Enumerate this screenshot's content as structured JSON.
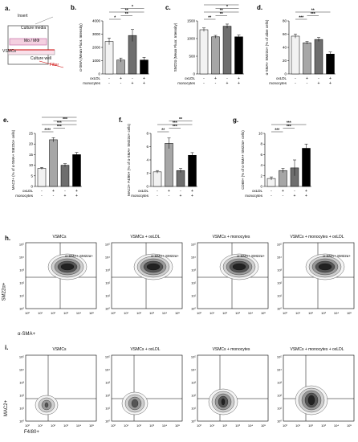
{
  "panel_a": {
    "label": "a.",
    "insert_label": "Insert",
    "culture_media": "Culture media",
    "mo_label": "Mo / MΦ",
    "vsmc_label": "VSMCs",
    "culture_well": "Culture well",
    "filter": "Filter"
  },
  "row_labels": [
    "oxLDL",
    "monocytes"
  ],
  "chart_data": [
    {
      "id": "b",
      "type": "bar",
      "panel": "b.",
      "ylabel": "α-SMA (Mean Fluor. Intensity)",
      "ylim": [
        0,
        4000
      ],
      "yticks": [
        "0",
        "1000",
        "2000",
        "3000",
        "4000"
      ],
      "values": [
        2450,
        1050,
        2900,
        1050
      ],
      "errors": [
        250,
        150,
        450,
        200
      ],
      "oxldl": [
        "-",
        "+",
        "-",
        "+"
      ],
      "monocytes": [
        "-",
        "-",
        "+",
        "+"
      ],
      "sig": [
        "*",
        "**",
        "**",
        "*"
      ]
    },
    {
      "id": "c",
      "type": "bar",
      "panel": "c.",
      "ylabel": "SM22α (Mean Fluor. Intensity)",
      "ylim": [
        0,
        1500
      ],
      "yticks": [
        "0",
        "500",
        "1000",
        "1500"
      ],
      "values": [
        1250,
        1050,
        1350,
        1050
      ],
      "errors": [
        50,
        40,
        60,
        50
      ],
      "oxldl": [
        "-",
        "+",
        "-",
        "+"
      ],
      "monocytes": [
        "-",
        "-",
        "+",
        "+"
      ],
      "sig": [
        "**",
        "**",
        "**",
        "*",
        "**"
      ]
    },
    {
      "id": "d",
      "type": "bar",
      "panel": "d.",
      "ylabel": "α-SMA+ SM22α+ (% of alive cells)",
      "ylim": [
        0,
        80
      ],
      "yticks": [
        "0",
        "20",
        "40",
        "60",
        "80"
      ],
      "values": [
        57,
        47,
        52,
        30
      ],
      "errors": [
        3,
        2,
        3,
        3
      ],
      "oxldl": [
        "-",
        "+",
        "-",
        "+"
      ],
      "monocytes": [
        "-",
        "-",
        "+",
        "+"
      ],
      "sig": [
        "***",
        "***",
        "**"
      ]
    },
    {
      "id": "e",
      "type": "bar",
      "panel": "e.",
      "ylabel": "MAC2+ (% of α-SMA+ SM22α+ cells)",
      "ylim": [
        0,
        25
      ],
      "yticks": [
        "0",
        "5",
        "10",
        "15",
        "20",
        "25"
      ],
      "values": [
        8.5,
        22,
        10,
        15
      ],
      "errors": [
        0.5,
        1,
        0.7,
        1
      ],
      "oxldl": [
        "-",
        "+",
        "-",
        "+"
      ],
      "monocytes": [
        "-",
        "-",
        "+",
        "+"
      ],
      "sig": [
        "****",
        "***",
        "***",
        "***",
        "***"
      ]
    },
    {
      "id": "f",
      "type": "bar",
      "panel": "f.",
      "ylabel": "MAC2+ F4/80+ (% of α-SMA+ SM22α+ cells)",
      "ylim": [
        0,
        8
      ],
      "yticks": [
        "0",
        "2",
        "4",
        "6",
        "8"
      ],
      "values": [
        2.2,
        6.5,
        2.4,
        4.7
      ],
      "errors": [
        0.2,
        0.8,
        0.3,
        0.4
      ],
      "oxldl": [
        "-",
        "+",
        "-",
        "+"
      ],
      "monocytes": [
        "-",
        "-",
        "+",
        "+"
      ],
      "sig": [
        "**",
        "***",
        "***",
        "**"
      ]
    },
    {
      "id": "g",
      "type": "bar",
      "panel": "g.",
      "ylabel": "CD68+ (% of α-SMA+ SM22α+ cells)",
      "ylim": [
        0,
        10
      ],
      "yticks": [
        "0",
        "2",
        "4",
        "6",
        "8",
        "10"
      ],
      "values": [
        1.5,
        3.0,
        3.5,
        7.2
      ],
      "errors": [
        0.3,
        0.4,
        1.5,
        0.8
      ],
      "oxldl": [
        "-",
        "+",
        "-",
        "+"
      ],
      "monocytes": [
        "-",
        "-",
        "+",
        "+"
      ],
      "sig": [
        "***",
        "***",
        "***"
      ]
    }
  ],
  "panel_h": {
    "label": "h.",
    "ylabel": "SM22α+",
    "xlabel": "α-SMA+",
    "titles": [
      "VSMCs",
      "VSMCs + oxLDL",
      "VSMCs + monocytes",
      "VSMCs + monocytes + oxLDL"
    ],
    "gate_label": "α-SMA+ SM22α+",
    "ticks": [
      "10⁵",
      "10⁴",
      "10³",
      "10²",
      "10¹",
      "10⁰"
    ],
    "xticks": [
      "10⁰",
      "10¹",
      "10²",
      "10³",
      "10⁴",
      "10⁵"
    ]
  },
  "panel_i": {
    "label": "i.",
    "ylabel": "MAC2+",
    "xlabel": "F4/80+",
    "titles": [
      "VSMCs",
      "VSMCs + oxLDL",
      "VSMCs + monocytes",
      "VSMCs + monocytes + oxLDL"
    ],
    "ticks": [
      "10⁵",
      "10⁴",
      "10³",
      "10²",
      "10¹",
      "10⁰"
    ],
    "xticks": [
      "10⁰",
      "10¹",
      "10²",
      "10³",
      "10⁴",
      "10⁵"
    ]
  },
  "colors": {
    "bar1": "#f2f2f2",
    "bar2": "#a6a6a6",
    "bar3": "#6e6e6e",
    "bar4": "#000000"
  }
}
